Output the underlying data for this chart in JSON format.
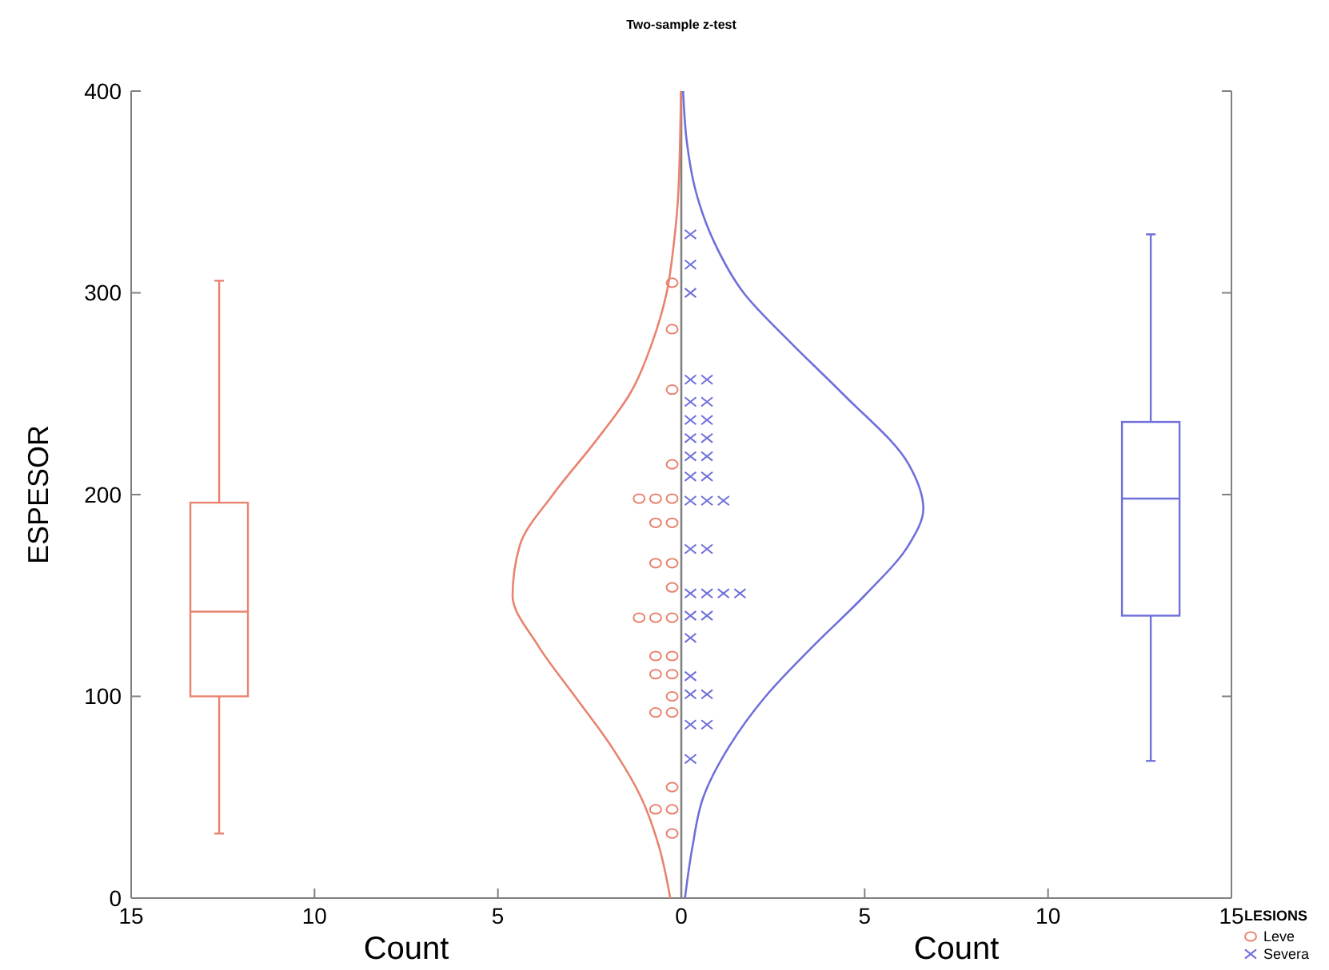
{
  "chart_data": {
    "type": "scatter",
    "title": "Two-sample z-test",
    "xlabel": "Count",
    "ylabel": "ESPESOR",
    "annotations": [
      "Count"
    ],
    "legend_title": "LESIONS",
    "legend": "bottom right",
    "xlim": [
      -15,
      15
    ],
    "xticks": [
      {
        "value": -15,
        "label": "15"
      },
      {
        "value": -10,
        "label": "10"
      },
      {
        "value": -5,
        "label": "5"
      },
      0,
      5,
      10,
      15
    ],
    "ylim": [
      0,
      400
    ],
    "yticks": [
      0,
      100,
      200,
      300,
      400
    ],
    "grid": false,
    "ref_lines": [
      {
        "axis": "x",
        "value": 0,
        "color": "#808080"
      }
    ],
    "series": [
      {
        "type": "line",
        "color": "#e8836f",
        "line_style": "solid",
        "x": [
          -0.3,
          -0.6,
          -1.1,
          -1.9,
          -2.9,
          -3.9,
          -4.6,
          -4.4,
          -3.5,
          -2.4,
          -1.4,
          -0.8,
          -0.4,
          -0.2,
          -0.08,
          -0.01
        ],
        "values": [
          0,
          25,
          50,
          75,
          100,
          125,
          150,
          175,
          200,
          225,
          250,
          275,
          300,
          325,
          350,
          400
        ]
      },
      {
        "type": "line",
        "color": "#6f6fdc",
        "line_style": "solid",
        "x": [
          0.1,
          0.3,
          0.6,
          1.3,
          2.3,
          3.6,
          5.0,
          6.2,
          6.6,
          6.2,
          4.4,
          3.0,
          1.7,
          0.9,
          0.4,
          0.15,
          0.05
        ],
        "values": [
          0,
          25,
          50,
          75,
          100,
          125,
          150,
          175,
          193,
          215,
          250,
          275,
          300,
          325,
          350,
          375,
          400
        ]
      },
      {
        "name": "Leve",
        "color": "#e8836f",
        "marker": "circle",
        "x": [
          -0.25,
          -0.25,
          -0.25,
          -0.25,
          -0.25,
          -0.7,
          -1.15,
          -0.25,
          -0.7,
          -0.25,
          -0.7,
          -0.25,
          -0.25,
          -0.7,
          -1.15,
          -0.25,
          -0.7,
          -0.25,
          -0.7,
          -0.25,
          -0.25,
          -0.7,
          -0.25,
          -0.25,
          -0.7,
          -0.25
        ],
        "values": [
          305,
          282,
          252,
          215,
          198,
          198,
          198,
          186,
          186,
          166,
          166,
          154,
          139,
          139,
          139,
          120,
          120,
          111,
          111,
          100,
          92,
          92,
          55,
          44,
          44,
          32
        ]
      },
      {
        "name": "Severa",
        "color": "#6f6fdc",
        "marker": "cross",
        "x": [
          0.25,
          0.25,
          0.25,
          0.25,
          0.7,
          0.25,
          0.7,
          0.25,
          0.7,
          0.25,
          0.7,
          0.25,
          0.7,
          0.25,
          0.7,
          0.25,
          0.7,
          1.15,
          0.25,
          0.7,
          0.25,
          0.7,
          1.15,
          1.6,
          0.25,
          0.7,
          0.25,
          0.25,
          0.25,
          0.7,
          0.25,
          0.7,
          0.25
        ],
        "values": [
          329,
          314,
          300,
          257,
          257,
          246,
          246,
          237,
          237,
          228,
          228,
          219,
          219,
          209,
          209,
          197,
          197,
          197,
          173,
          173,
          151,
          151,
          151,
          151,
          140,
          140,
          129,
          110,
          101,
          101,
          86,
          86,
          69
        ]
      },
      {
        "type": "box",
        "color": "#e8836f",
        "x": [
          -12.6
        ],
        "boxes": [
          {
            "low": 32,
            "q1": 100,
            "median": 142,
            "q3": 196,
            "high": 306
          }
        ]
      },
      {
        "type": "box",
        "color": "#6f6fdc",
        "x": [
          12.8
        ],
        "boxes": [
          {
            "low": 68,
            "q1": 140,
            "median": 198,
            "q3": 236,
            "high": 329
          }
        ]
      }
    ]
  }
}
